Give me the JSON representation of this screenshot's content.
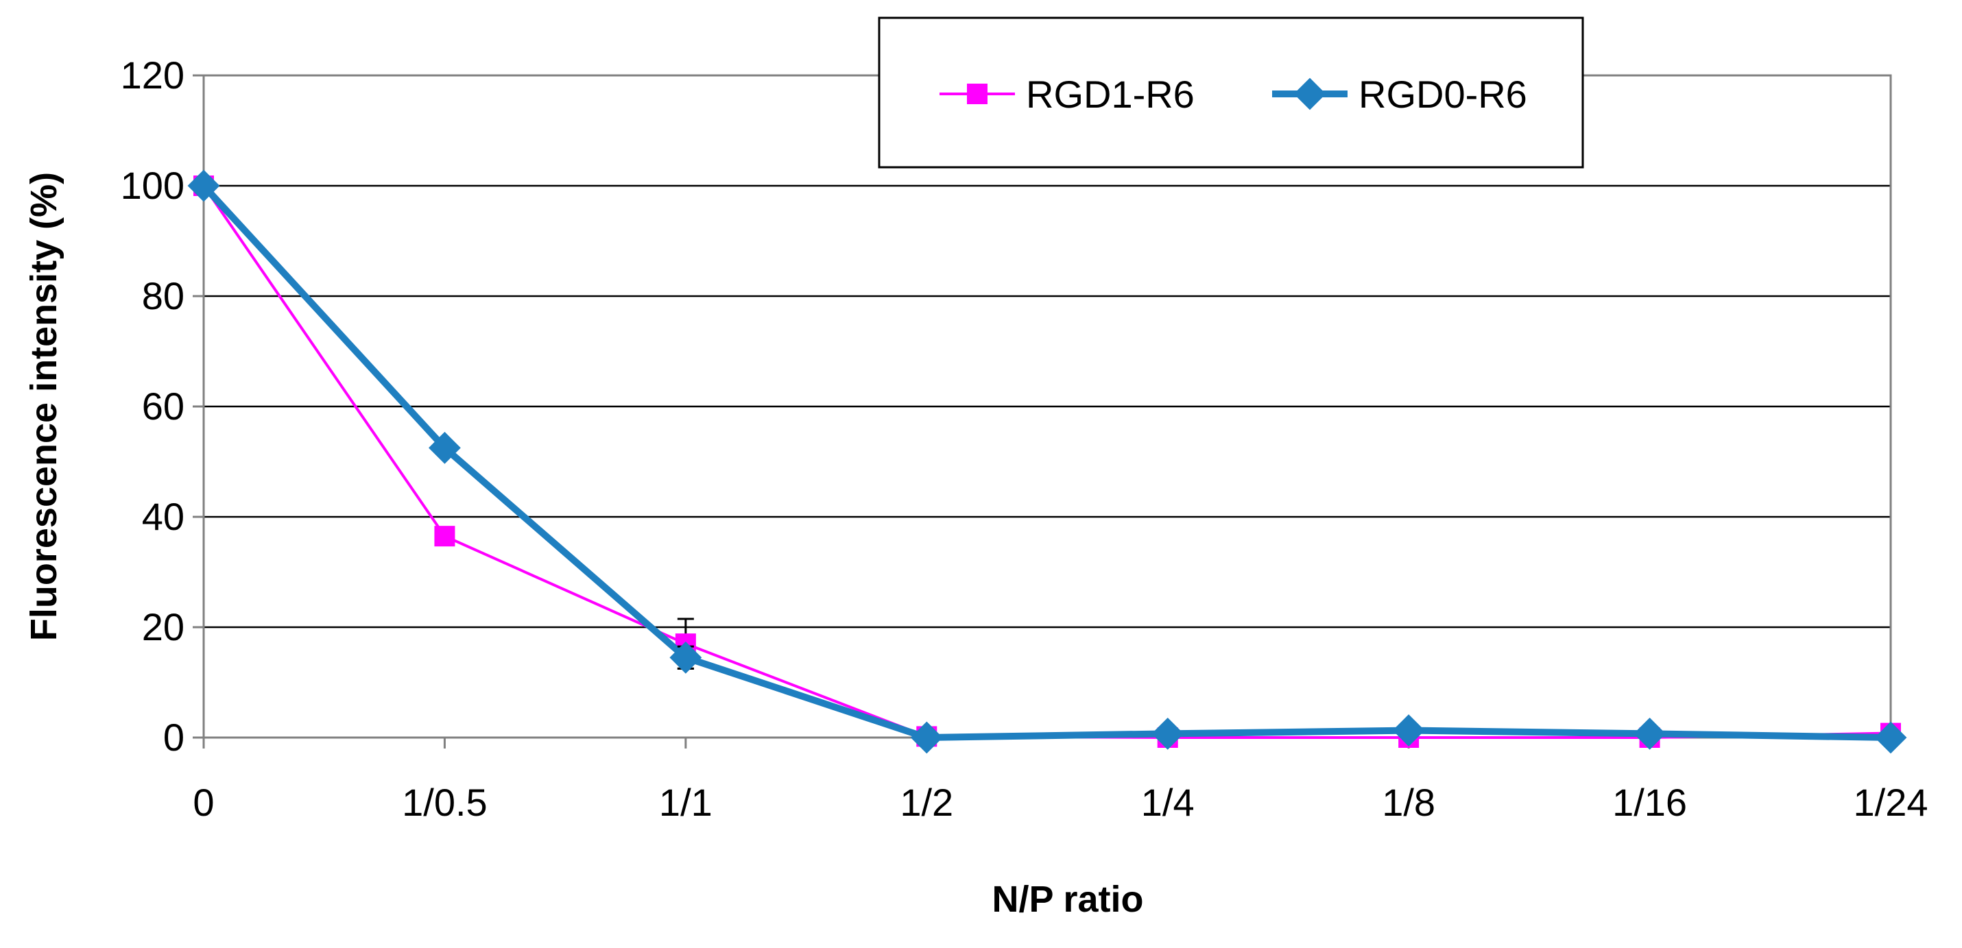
{
  "chart_data": {
    "type": "line",
    "title": "",
    "xlabel": "N/P ratio",
    "ylabel": "Fluorescence intensity (%)",
    "categories": [
      "0",
      "1/0.5",
      "1/1",
      "1/2",
      "1/4",
      "1/8",
      "1/16",
      "1/24"
    ],
    "ylim": [
      0,
      120
    ],
    "yticks": [
      0,
      20,
      40,
      60,
      80,
      100,
      120
    ],
    "grid": "horizontal",
    "legend_position": "top-right",
    "series": [
      {
        "name": "RGD1-R6",
        "color": "#ff00ff",
        "marker": "square",
        "line": "thin",
        "values": [
          100,
          36.5,
          17,
          0.2,
          0,
          0,
          0,
          0.8
        ],
        "error": [
          0,
          0,
          4.5,
          0,
          0,
          0,
          0,
          0
        ]
      },
      {
        "name": "RGD0-R6",
        "color": "#1f7fc0",
        "marker": "diamond",
        "line": "thick",
        "values": [
          100,
          52.5,
          14.5,
          0,
          0.7,
          1.3,
          0.7,
          0
        ],
        "error": [
          0,
          0,
          2,
          0,
          0,
          0,
          0,
          0
        ]
      }
    ]
  }
}
